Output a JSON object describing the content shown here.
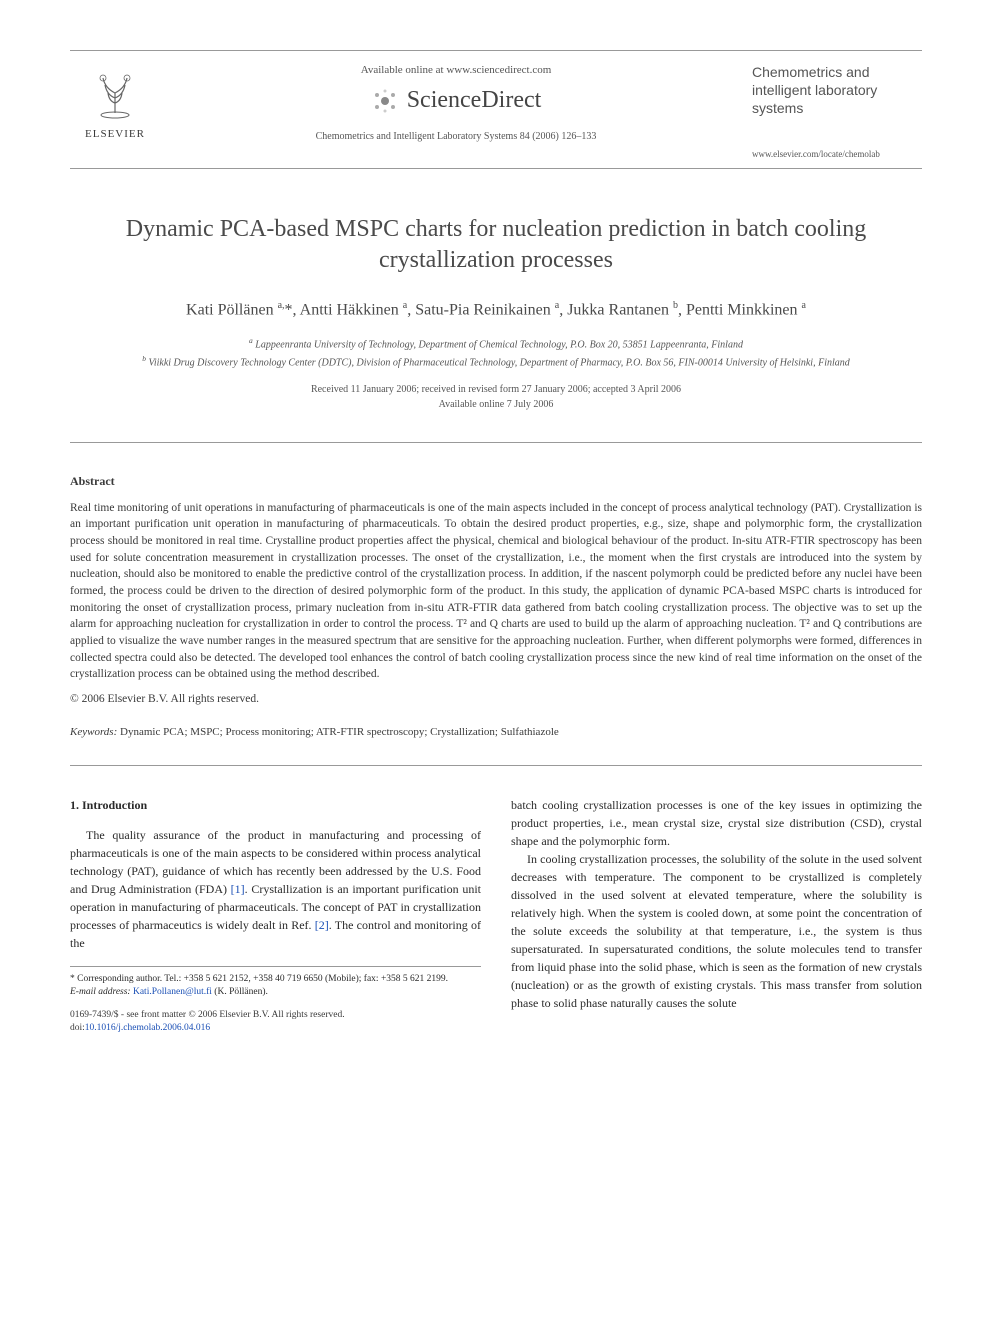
{
  "header": {
    "available_online": "Available online at www.sciencedirect.com",
    "sciencedirect": "ScienceDirect",
    "citation": "Chemometrics and Intelligent Laboratory Systems 84 (2006) 126–133",
    "elsevier_label": "ELSEVIER",
    "journal_title": "Chemometrics and intelligent laboratory systems",
    "journal_url": "www.elsevier.com/locate/chemolab"
  },
  "title": "Dynamic PCA-based MSPC charts for nucleation prediction in batch cooling crystallization processes",
  "authors_html": "Kati Pöllänen <sup>a,</sup>*, Antti Häkkinen <sup>a</sup>, Satu-Pia Reinikainen <sup>a</sup>, Jukka Rantanen <sup>b</sup>, Pentti Minkkinen <sup>a</sup>",
  "affiliations": {
    "a": "Lappeenranta University of Technology, Department of Chemical Technology, P.O. Box 20, 53851 Lappeenranta, Finland",
    "b": "Viikki Drug Discovery Technology Center (DDTC), Division of Pharmaceutical Technology, Department of Pharmacy, P.O. Box 56, FIN-00014 University of Helsinki, Finland"
  },
  "dates": {
    "received": "Received 11 January 2006; received in revised form 27 January 2006; accepted 3 April 2006",
    "online": "Available online 7 July 2006"
  },
  "abstract": {
    "heading": "Abstract",
    "body": "Real time monitoring of unit operations in manufacturing of pharmaceuticals is one of the main aspects included in the concept of process analytical technology (PAT). Crystallization is an important purification unit operation in manufacturing of pharmaceuticals. To obtain the desired product properties, e.g., size, shape and polymorphic form, the crystallization process should be monitored in real time. Crystalline product properties affect the physical, chemical and biological behaviour of the product. In-situ ATR-FTIR spectroscopy has been used for solute concentration measurement in crystallization processes. The onset of the crystallization, i.e., the moment when the first crystals are introduced into the system by nucleation, should also be monitored to enable the predictive control of the crystallization process. In addition, if the nascent polymorph could be predicted before any nuclei have been formed, the process could be driven to the direction of desired polymorphic form of the product. In this study, the application of dynamic PCA-based MSPC charts is introduced for monitoring the onset of crystallization process, primary nucleation from in-situ ATR-FTIR data gathered from batch cooling crystallization process. The objective was to set up the alarm for approaching nucleation for crystallization in order to control the process. T² and Q charts are used to build up the alarm of approaching nucleation. T² and Q contributions are applied to visualize the wave number ranges in the measured spectrum that are sensitive for the approaching nucleation. Further, when different polymorphs were formed, differences in collected spectra could also be detected. The developed tool enhances the control of batch cooling crystallization process since the new kind of real time information on the onset of the crystallization process can be obtained using the method described.",
    "copyright": "© 2006 Elsevier B.V. All rights reserved."
  },
  "keywords": {
    "label": "Keywords:",
    "text": "Dynamic PCA; MSPC; Process monitoring; ATR-FTIR spectroscopy; Crystallization; Sulfathiazole"
  },
  "intro": {
    "heading": "1. Introduction",
    "left_p": "The quality assurance of the product in manufacturing and processing of pharmaceuticals is one of the main aspects to be considered within process analytical technology (PAT), guidance of which has recently been addressed by the U.S. Food and Drug Administration (FDA) ",
    "ref1": "[1]",
    "left_p2": ". Crystallization is an important purification unit operation in manufacturing of pharmaceuticals. The concept of PAT in crystallization processes of pharmaceutics is widely dealt in Ref. ",
    "ref2": "[2]",
    "left_p3": ". The control and monitoring of the",
    "right_p1": "batch cooling crystallization processes is one of the key issues in optimizing the product properties, i.e., mean crystal size, crystal size distribution (CSD), crystal shape and the polymorphic form.",
    "right_p2": "In cooling crystallization processes, the solubility of the solute in the used solvent decreases with temperature. The component to be crystallized is completely dissolved in the used solvent at elevated temperature, where the solubility is relatively high. When the system is cooled down, at some point the concentration of the solute exceeds the solubility at that temperature, i.e., the system is thus supersaturated. In supersaturated conditions, the solute molecules tend to transfer from liquid phase into the solid phase, which is seen as the formation of new crystals (nucleation) or as the growth of existing crystals. This mass transfer from solution phase to solid phase naturally causes the solute"
  },
  "footnotes": {
    "corr": "* Corresponding author. Tel.: +358 5 621 2152, +358 40 719 6650 (Mobile); fax: +358 5 621 2199.",
    "email_label": "E-mail address:",
    "email": "Kati.Pollanen@lut.fi",
    "email_author": "(K. Pöllänen)."
  },
  "doi": {
    "front_matter": "0169-7439/$ - see front matter © 2006 Elsevier B.V. All rights reserved.",
    "doi_label": "doi:",
    "doi_value": "10.1016/j.chemolab.2006.04.016"
  },
  "colors": {
    "text": "#3a3a3a",
    "link": "#1a4fb5",
    "rule": "#999999",
    "background": "#ffffff"
  }
}
